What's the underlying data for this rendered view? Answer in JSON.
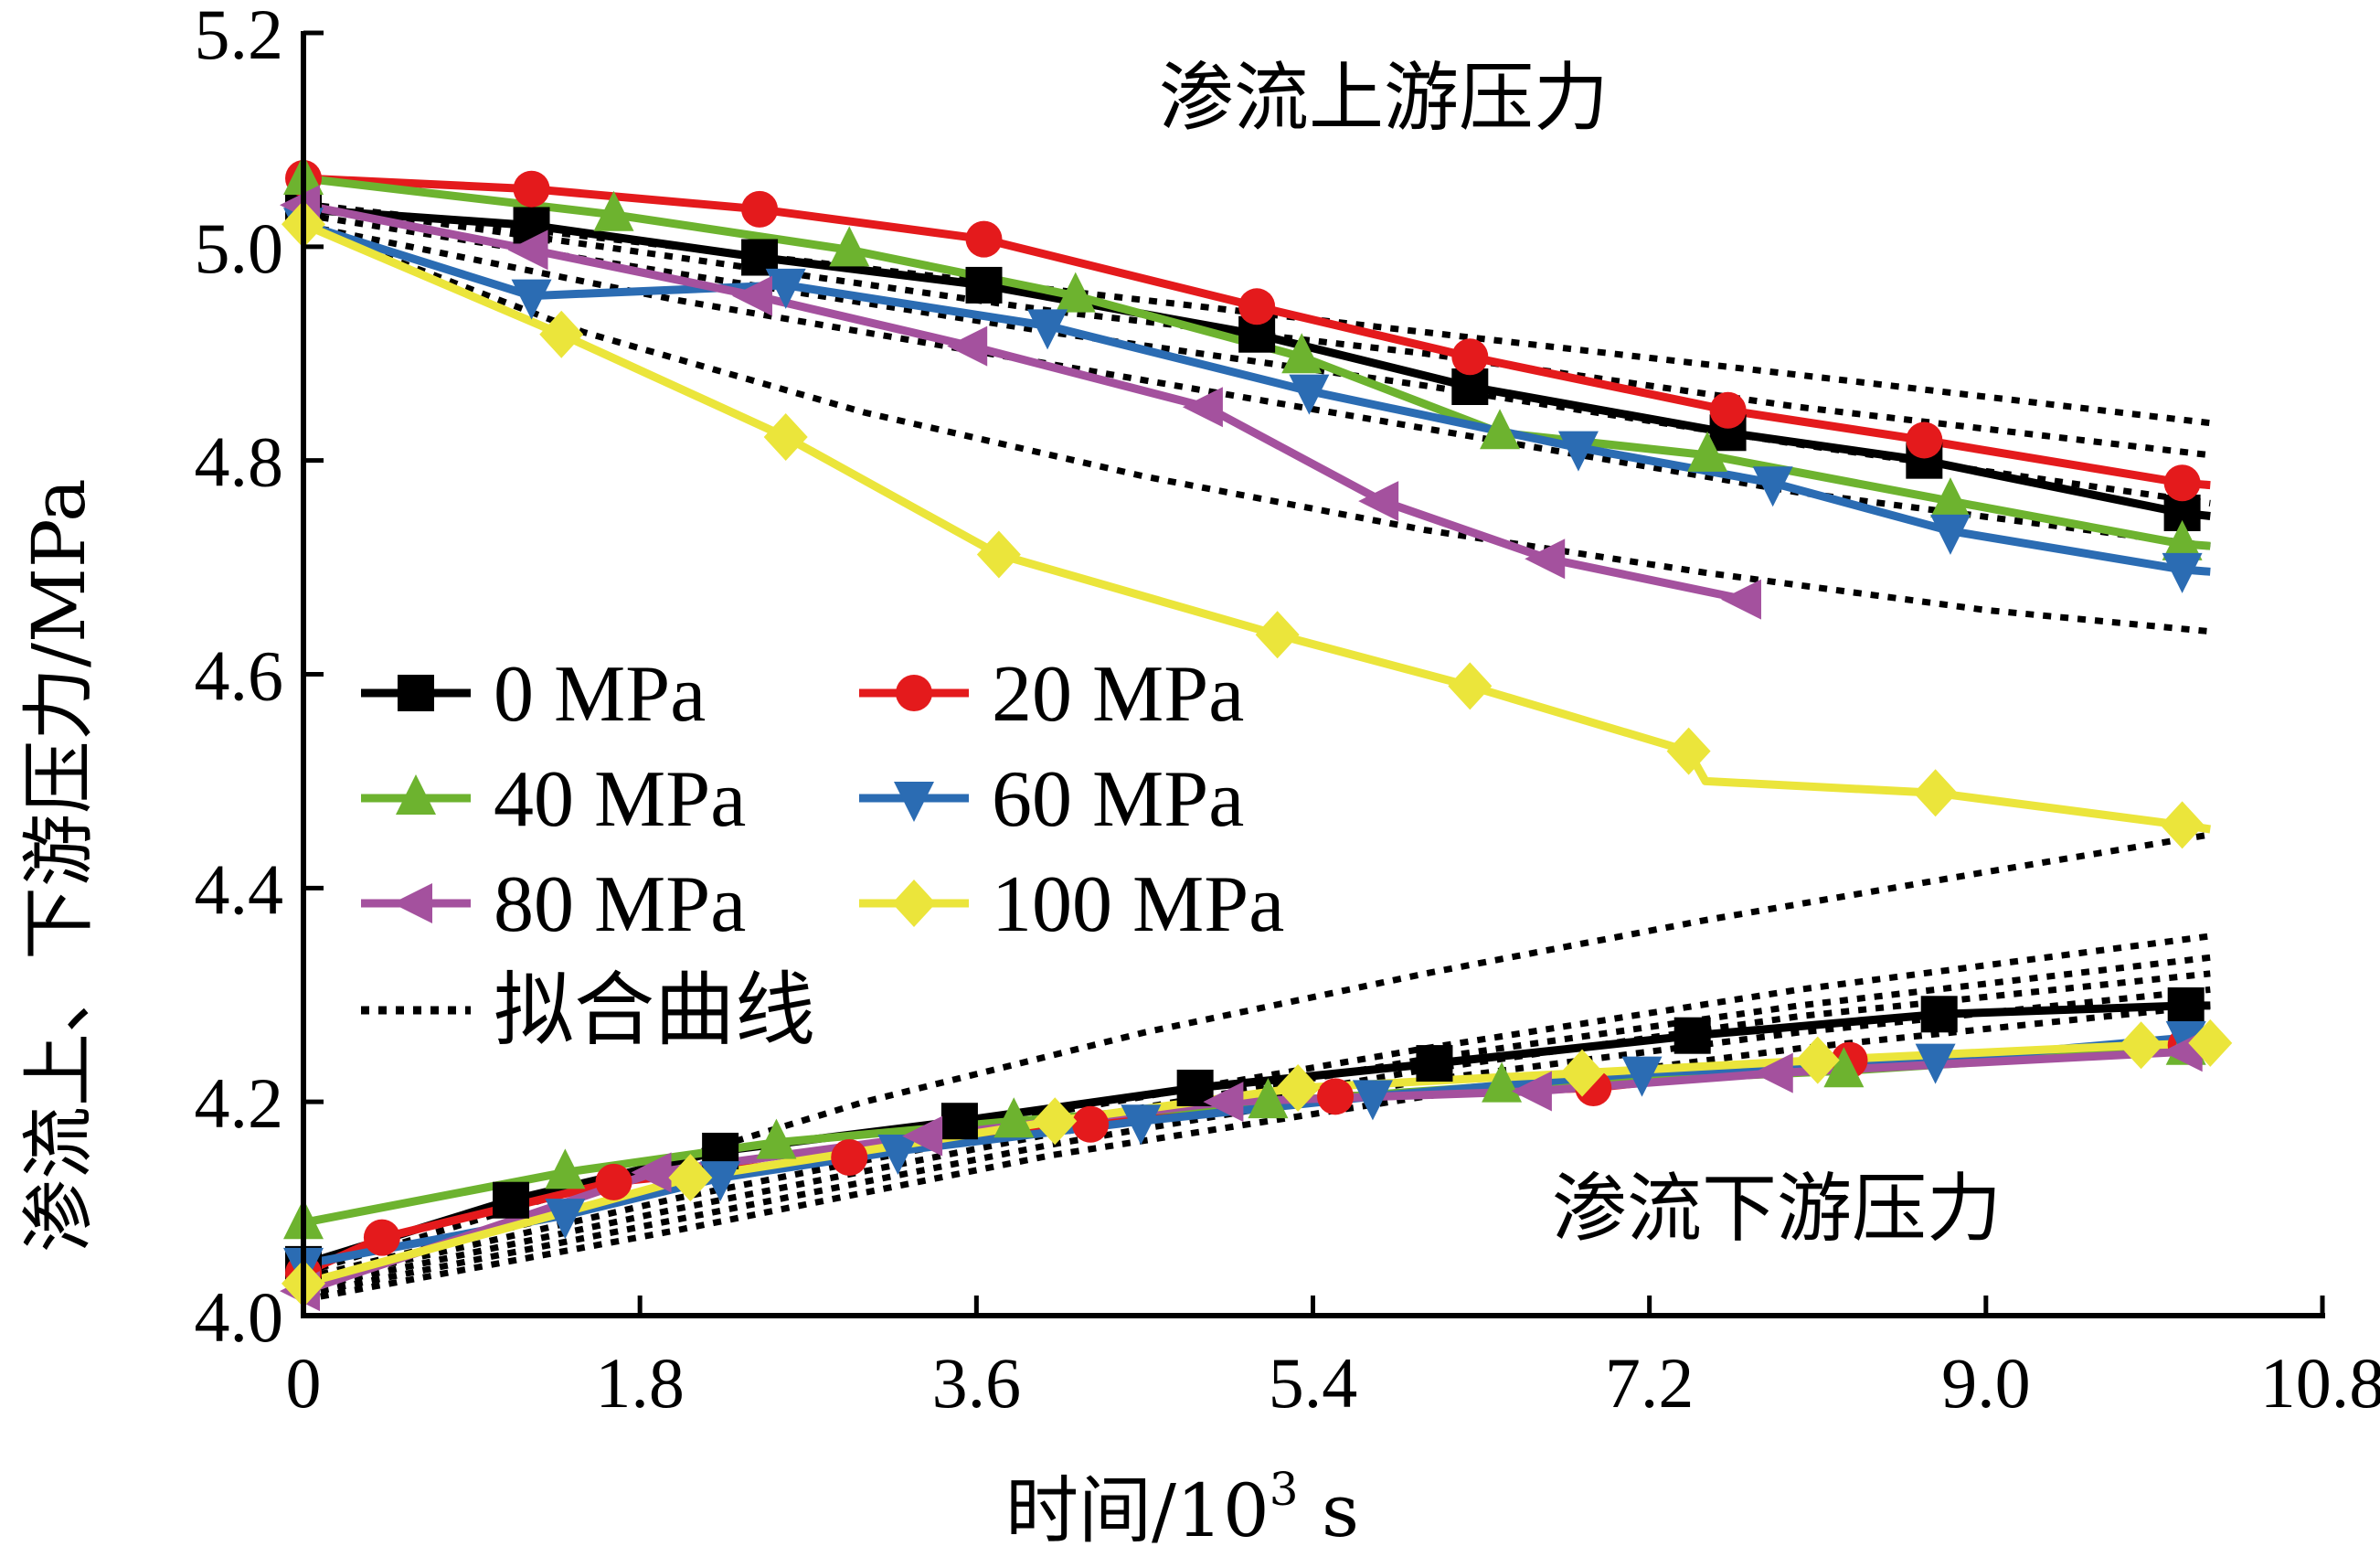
{
  "chart_data": {
    "type": "line",
    "title": "",
    "xlabel": "时间/10",
    "xlabel_sup": "3",
    "xlabel_unit": " s",
    "ylabel": "渗流上、下游压力/MPa",
    "xlim": [
      0,
      10.8
    ],
    "ylim": [
      4.0,
      5.2
    ],
    "xticks": [
      0,
      1.8,
      3.6,
      5.4,
      7.2,
      9.0,
      10.8
    ],
    "xtick_labels": [
      "0",
      "1.8",
      "3.6",
      "5.4",
      "7.2",
      "9.0",
      "10.8"
    ],
    "yticks": [
      4.0,
      4.2,
      4.4,
      4.6,
      4.8,
      5.0,
      5.2
    ],
    "ytick_labels": [
      "4.0",
      "4.2",
      "4.4",
      "4.6",
      "4.8",
      "5.0",
      "5.2"
    ],
    "grid": false,
    "legend_position": "center-left",
    "annotations": [
      {
        "text": "渗流上游压力",
        "near": "top-center"
      },
      {
        "text": "渗流下游压力",
        "near": "bottom-right"
      }
    ],
    "legend": [
      {
        "label": "0 MPa",
        "series": "0MPa"
      },
      {
        "label": "20 MPa",
        "series": "20MPa"
      },
      {
        "label": "40 MPa",
        "series": "40MPa"
      },
      {
        "label": "60 MPa",
        "series": "60MPa"
      },
      {
        "label": "80 MPa",
        "series": "80MPa"
      },
      {
        "label": "100 MPa",
        "series": "100MPa"
      },
      {
        "label": "拟合曲线",
        "series": "fit"
      }
    ],
    "series": [
      {
        "name": "0 MPa",
        "key": "0MPa",
        "color": "#000000",
        "marker": "square",
        "upstream": {
          "x": [
            0,
            1.22,
            2.44,
            3.64,
            5.1,
            6.24,
            7.62,
            8.67,
            10.05,
            10.2
          ],
          "y": [
            5.035,
            5.02,
            4.99,
            4.964,
            4.918,
            4.869,
            4.826,
            4.8,
            4.751,
            4.748
          ]
        },
        "downstream": {
          "x": [
            0,
            1.11,
            2.23,
            3.51,
            4.77,
            6.05,
            7.43,
            8.75,
            10.07,
            10.2
          ],
          "y": [
            4.048,
            4.108,
            4.154,
            4.182,
            4.213,
            4.236,
            4.262,
            4.282,
            4.29,
            4.29
          ]
        }
      },
      {
        "name": "20 MPa",
        "key": "20MPa",
        "color": "#e41a1c",
        "marker": "circle",
        "upstream": {
          "x": [
            0,
            1.22,
            2.44,
            3.64,
            5.1,
            6.24,
            7.62,
            8.67,
            10.05,
            10.2
          ],
          "y": [
            5.064,
            5.054,
            5.035,
            5.007,
            4.944,
            4.897,
            4.847,
            4.819,
            4.779,
            4.777
          ]
        },
        "downstream": {
          "x": [
            0,
            0.42,
            1.66,
            2.92,
            4.21,
            5.52,
            6.9,
            8.27,
            10.07,
            10.2
          ],
          "y": [
            4.04,
            4.073,
            4.125,
            4.148,
            4.179,
            4.205,
            4.213,
            4.239,
            4.253,
            4.253
          ]
        }
      },
      {
        "name": "40 MPa",
        "key": "40MPa",
        "color": "#6db32f",
        "marker": "triangle-up",
        "upstream": {
          "x": [
            0,
            1.66,
            2.92,
            4.13,
            5.34,
            6.4,
            7.51,
            8.81,
            10.05,
            10.2
          ],
          "y": [
            5.064,
            5.03,
            4.997,
            4.954,
            4.897,
            4.826,
            4.805,
            4.762,
            4.722,
            4.72
          ]
        },
        "downstream": {
          "x": [
            0,
            1.4,
            2.53,
            3.8,
            5.16,
            6.41,
            8.24,
            10.07,
            10.2
          ],
          "y": [
            4.087,
            4.134,
            4.162,
            4.182,
            4.2,
            4.215,
            4.229,
            4.25,
            4.25
          ]
        }
      },
      {
        "name": "60 MPa",
        "key": "60MPa",
        "color": "#2b6cb3",
        "marker": "triangle-down",
        "upstream": {
          "x": [
            0,
            1.22,
            2.58,
            3.98,
            5.38,
            6.82,
            7.86,
            8.81,
            10.05,
            10.2
          ],
          "y": [
            5.021,
            4.954,
            4.964,
            4.926,
            4.865,
            4.812,
            4.779,
            4.734,
            4.698,
            4.696
          ]
        },
        "downstream": {
          "x": [
            0,
            1.4,
            2.23,
            3.18,
            4.48,
            5.72,
            7.16,
            8.73,
            10.07,
            10.2
          ],
          "y": [
            4.048,
            4.094,
            4.129,
            4.154,
            4.182,
            4.205,
            4.227,
            4.239,
            4.26,
            4.26
          ]
        }
      },
      {
        "name": "80 MPa",
        "key": "80MPa",
        "color": "#a4519e",
        "marker": "triangle-left",
        "upstream": {
          "x": [
            0,
            1.22,
            2.42,
            3.57,
            4.83,
            5.77,
            6.66,
            7.71
          ],
          "y": [
            5.039,
            4.997,
            4.954,
            4.907,
            4.85,
            4.762,
            4.708,
            4.67
          ]
        },
        "downstream": {
          "x": [
            0,
            1.88,
            3.33,
            4.94,
            6.59,
            7.88,
            10.07,
            10.2
          ],
          "y": [
            4.023,
            4.134,
            4.168,
            4.2,
            4.21,
            4.227,
            4.247,
            4.245
          ]
        }
      },
      {
        "name": "100 MPa",
        "key": "100MPa",
        "color": "#ebe53b",
        "marker": "diamond",
        "upstream": {
          "x": [
            0,
            1.38,
            2.58,
            3.72,
            5.21,
            6.24,
            7.41,
            7.5,
            8.73,
            10.05,
            10.2
          ],
          "y": [
            5.021,
            4.918,
            4.822,
            4.712,
            4.637,
            4.589,
            4.528,
            4.5,
            4.489,
            4.459,
            4.455
          ]
        },
        "downstream": {
          "x": [
            0,
            2.07,
            4.02,
            5.32,
            6.84,
            8.1,
            9.83,
            10.2
          ],
          "y": [
            4.03,
            4.129,
            4.182,
            4.213,
            4.227,
            4.239,
            4.253,
            4.255
          ]
        }
      }
    ],
    "fit_curves": [
      {
        "name": "拟合曲线 上游 1",
        "x": [
          0,
          2,
          4,
          6,
          8,
          10.2
        ],
        "y": [
          5.04,
          5.0,
          4.96,
          4.92,
          4.88,
          4.835
        ]
      },
      {
        "name": "拟合曲线 上游 2",
        "x": [
          0,
          2,
          4,
          6,
          8,
          10.2
        ],
        "y": [
          5.04,
          4.99,
          4.94,
          4.9,
          4.85,
          4.805
        ]
      },
      {
        "name": "拟合曲线 上游 3",
        "x": [
          0,
          2,
          4,
          6,
          8,
          10.2
        ],
        "y": [
          5.03,
          4.975,
          4.92,
          4.87,
          4.815,
          4.76
        ]
      },
      {
        "name": "拟合曲线 上游 4",
        "x": [
          0,
          2,
          4,
          6,
          8,
          10.2
        ],
        "y": [
          5.02,
          4.95,
          4.89,
          4.83,
          4.77,
          4.72
        ]
      },
      {
        "name": "拟合曲线 上游 5",
        "x": [
          0,
          1.5,
          3,
          4.5,
          6,
          7.5,
          9,
          10.2
        ],
        "y": [
          5.02,
          4.92,
          4.845,
          4.785,
          4.735,
          4.695,
          4.66,
          4.64
        ]
      },
      {
        "name": "拟合曲线 下游 1",
        "x": [
          0,
          1.5,
          3,
          4.5,
          6,
          7.5,
          9,
          10.2
        ],
        "y": [
          4.04,
          4.12,
          4.2,
          4.265,
          4.32,
          4.37,
          4.415,
          4.45
        ]
      },
      {
        "name": "拟合曲线 下游 2",
        "x": [
          0,
          2,
          4,
          6,
          8,
          10.2
        ],
        "y": [
          4.035,
          4.12,
          4.19,
          4.25,
          4.305,
          4.355
        ]
      },
      {
        "name": "拟合曲线 下游 3",
        "x": [
          0,
          2,
          4,
          6,
          8,
          10.2
        ],
        "y": [
          4.03,
          4.11,
          4.18,
          4.24,
          4.29,
          4.335
        ]
      },
      {
        "name": "拟合曲线 下游 4",
        "x": [
          0,
          2,
          4,
          6,
          8,
          10.2
        ],
        "y": [
          4.025,
          4.1,
          4.17,
          4.23,
          4.28,
          4.32
        ]
      },
      {
        "name": "拟合曲线 下游 5",
        "x": [
          0,
          2,
          4,
          6,
          8,
          10.2
        ],
        "y": [
          4.02,
          4.09,
          4.16,
          4.22,
          4.265,
          4.305
        ]
      },
      {
        "name": "拟合曲线 下游 6",
        "x": [
          0,
          2,
          4,
          6,
          8,
          10.2
        ],
        "y": [
          4.015,
          4.08,
          4.15,
          4.205,
          4.25,
          4.29
        ]
      }
    ]
  }
}
